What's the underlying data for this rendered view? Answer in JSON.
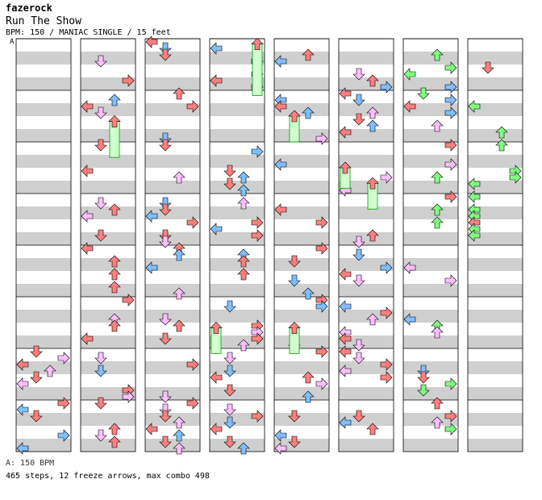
{
  "header": {
    "author": "fazerock",
    "title": "Run The Show",
    "meta": "BPM: 150 / MANIAC SINGLE / 15 feet"
  },
  "speed_marker": "A",
  "footer": {
    "speed_line": "A: 150 BPM",
    "stats_line": "465 steps, 12 freeze arrows, max combo 498"
  },
  "colors": {
    "quarter": "#ff7f7f",
    "eighth": "#7fbfff",
    "sixteenth": "#ffbfff",
    "twelfth": "#7fff7f",
    "freeze_fill": "#d0ffd0",
    "freeze_border": "#00a000",
    "band_gray": "#cfcfcf"
  },
  "chart_data": {
    "type": "step-chart",
    "columns": 8,
    "measures_per_column": 8,
    "lanes": [
      "left",
      "down",
      "up",
      "right"
    ],
    "total_steps": 465,
    "freeze_arrows": 12,
    "max_combo": 498
  }
}
